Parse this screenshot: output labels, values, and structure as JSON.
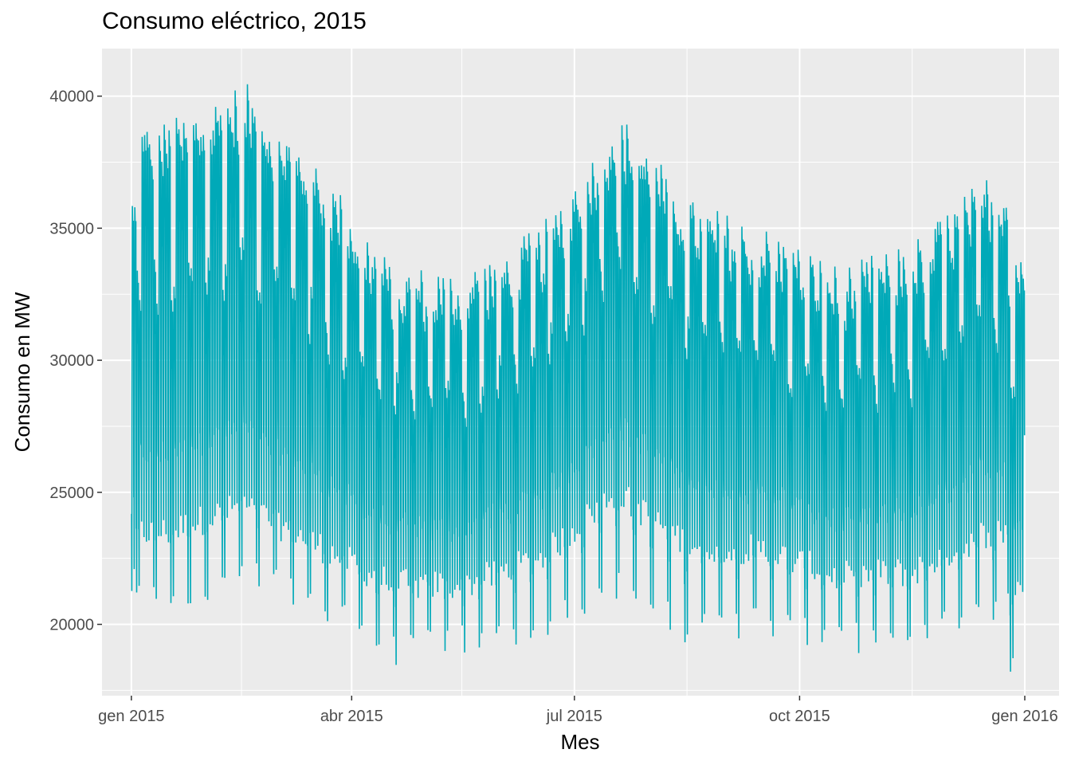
{
  "chart_data": {
    "type": "line",
    "title": "Consumo eléctrico, 2015",
    "xlabel": "Mes",
    "ylabel": "Consumo en MW",
    "x_ticks": [
      "gen 2015",
      "abr 2015",
      "jul 2015",
      "oct 2015",
      "gen 2016"
    ],
    "y_ticks": [
      20000,
      25000,
      30000,
      35000,
      40000
    ],
    "xlim": [
      "2014-12-20",
      "2016-01-15"
    ],
    "ylim": [
      17300,
      41800
    ],
    "grid": true,
    "legend": "none",
    "line_color": "#00A9B8",
    "series": [
      {
        "x_start": "2015-01-01",
        "x_end": "2015-12-31",
        "resolution": "hourly",
        "monthly_summary": [
          {
            "month": "2015-01",
            "weekday_peak": 38000,
            "weekend_peak": 33000,
            "weekday_trough": 23500,
            "weekend_trough": 21000
          },
          {
            "month": "2015-02",
            "weekday_peak": 39500,
            "weekend_peak": 34000,
            "weekday_trough": 24500,
            "weekend_trough": 22000
          },
          {
            "month": "2015-03",
            "weekday_peak": 36500,
            "weekend_peak": 31500,
            "weekday_trough": 23000,
            "weekend_trough": 20800
          },
          {
            "month": "2015-04",
            "weekday_peak": 32500,
            "weekend_peak": 28500,
            "weekday_trough": 21500,
            "weekend_trough": 19000
          },
          {
            "month": "2015-05",
            "weekday_peak": 32500,
            "weekend_peak": 28500,
            "weekday_trough": 21500,
            "weekend_trough": 19500
          },
          {
            "month": "2015-06",
            "weekday_peak": 34000,
            "weekend_peak": 30000,
            "weekday_trough": 22500,
            "weekend_trough": 20000
          },
          {
            "month": "2015-07",
            "weekday_peak": 38500,
            "weekend_peak": 34000,
            "weekday_trough": 25000,
            "weekend_trough": 21500
          },
          {
            "month": "2015-08",
            "weekday_peak": 35000,
            "weekend_peak": 31000,
            "weekday_trough": 23000,
            "weekend_trough": 19800
          },
          {
            "month": "2015-09",
            "weekday_peak": 34000,
            "weekend_peak": 30500,
            "weekday_trough": 22800,
            "weekend_trough": 20200
          },
          {
            "month": "2015-10",
            "weekday_peak": 32500,
            "weekend_peak": 28500,
            "weekday_trough": 21800,
            "weekend_trough": 19500
          },
          {
            "month": "2015-11",
            "weekday_peak": 33500,
            "weekend_peak": 29500,
            "weekday_trough": 22000,
            "weekend_trough": 19500
          },
          {
            "month": "2015-12",
            "weekday_peak": 36000,
            "weekend_peak": 31500,
            "weekday_trough": 23500,
            "weekend_trough": 20500
          }
        ],
        "max": 40600,
        "min": 18000
      }
    ]
  }
}
